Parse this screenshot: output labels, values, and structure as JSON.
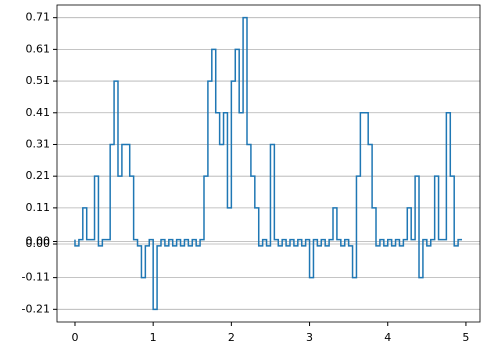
{
  "chart_data": {
    "type": "step",
    "color": "#1f77b4",
    "grid": true,
    "x": [
      0,
      0.05,
      0.1,
      0.15,
      0.2,
      0.25,
      0.3,
      0.35,
      0.4,
      0.45,
      0.5,
      0.55,
      0.6,
      0.65,
      0.7,
      0.75,
      0.8,
      0.85,
      0.9,
      0.95,
      1,
      1.05,
      1.1,
      1.15,
      1.2,
      1.25,
      1.3,
      1.35,
      1.4,
      1.45,
      1.5,
      1.55,
      1.6,
      1.65,
      1.7,
      1.75,
      1.8,
      1.85,
      1.9,
      1.95,
      2,
      2.05,
      2.1,
      2.15,
      2.2,
      2.25,
      2.3,
      2.35,
      2.4,
      2.45,
      2.5,
      2.55,
      2.6,
      2.65,
      2.7,
      2.75,
      2.8,
      2.85,
      2.9,
      2.95,
      3,
      3.05,
      3.1,
      3.15,
      3.2,
      3.25,
      3.3,
      3.35,
      3.4,
      3.45,
      3.5,
      3.55,
      3.6,
      3.65,
      3.7,
      3.75,
      3.8,
      3.85,
      3.9,
      3.95,
      4,
      4.05,
      4.1,
      4.15,
      4.2,
      4.25,
      4.3,
      4.35,
      4.4,
      4.45,
      4.5,
      4.55,
      4.6,
      4.65,
      4.7,
      4.75,
      4.8,
      4.85,
      4.9,
      4.95
    ],
    "values": [
      0.01,
      -0.01,
      0.01,
      0.11,
      0.01,
      0.01,
      0.21,
      -0.01,
      0.01,
      0.01,
      0.31,
      0.51,
      0.21,
      0.31,
      0.31,
      0.21,
      0.01,
      -0.01,
      -0.11,
      -0.01,
      0.01,
      -0.21,
      -0.01,
      0.01,
      -0.01,
      0.01,
      -0.01,
      0.01,
      -0.01,
      0.01,
      -0.01,
      0.01,
      -0.01,
      0.01,
      0.21,
      0.51,
      0.61,
      0.41,
      0.31,
      0.41,
      0.11,
      0.51,
      0.61,
      0.41,
      0.71,
      0.31,
      0.21,
      0.11,
      -0.01,
      0.01,
      -0.01,
      0.31,
      0.01,
      -0.01,
      0.01,
      -0.01,
      0.01,
      -0.01,
      0.01,
      -0.01,
      0.01,
      -0.11,
      0.01,
      -0.01,
      0.01,
      -0.01,
      0.01,
      0.11,
      0.01,
      -0.01,
      0.01,
      -0.01,
      -0.11,
      0.21,
      0.41,
      0.41,
      0.31,
      0.11,
      -0.01,
      0.01,
      -0.01,
      0.01,
      -0.01,
      0.01,
      -0.01,
      0.01,
      0.11,
      0.01,
      0.21,
      -0.11,
      0.01,
      -0.01,
      0.01,
      0.21,
      0.01,
      0.01,
      0.41,
      0.21,
      -0.01,
      0.01
    ],
    "xlim": [
      -0.23,
      5.18
    ],
    "xticks": [
      0,
      1,
      2,
      3,
      4,
      5
    ],
    "ylim": [
      -0.25,
      0.75
    ],
    "yticks": [
      0.71,
      0.61,
      0.51,
      0.41,
      0.31,
      0.21,
      0.11,
      {
        "value": 0.004,
        "label": "0.00"
      },
      {
        "value": -0.004,
        "label": "0.00"
      },
      -0.11,
      -0.21
    ]
  }
}
